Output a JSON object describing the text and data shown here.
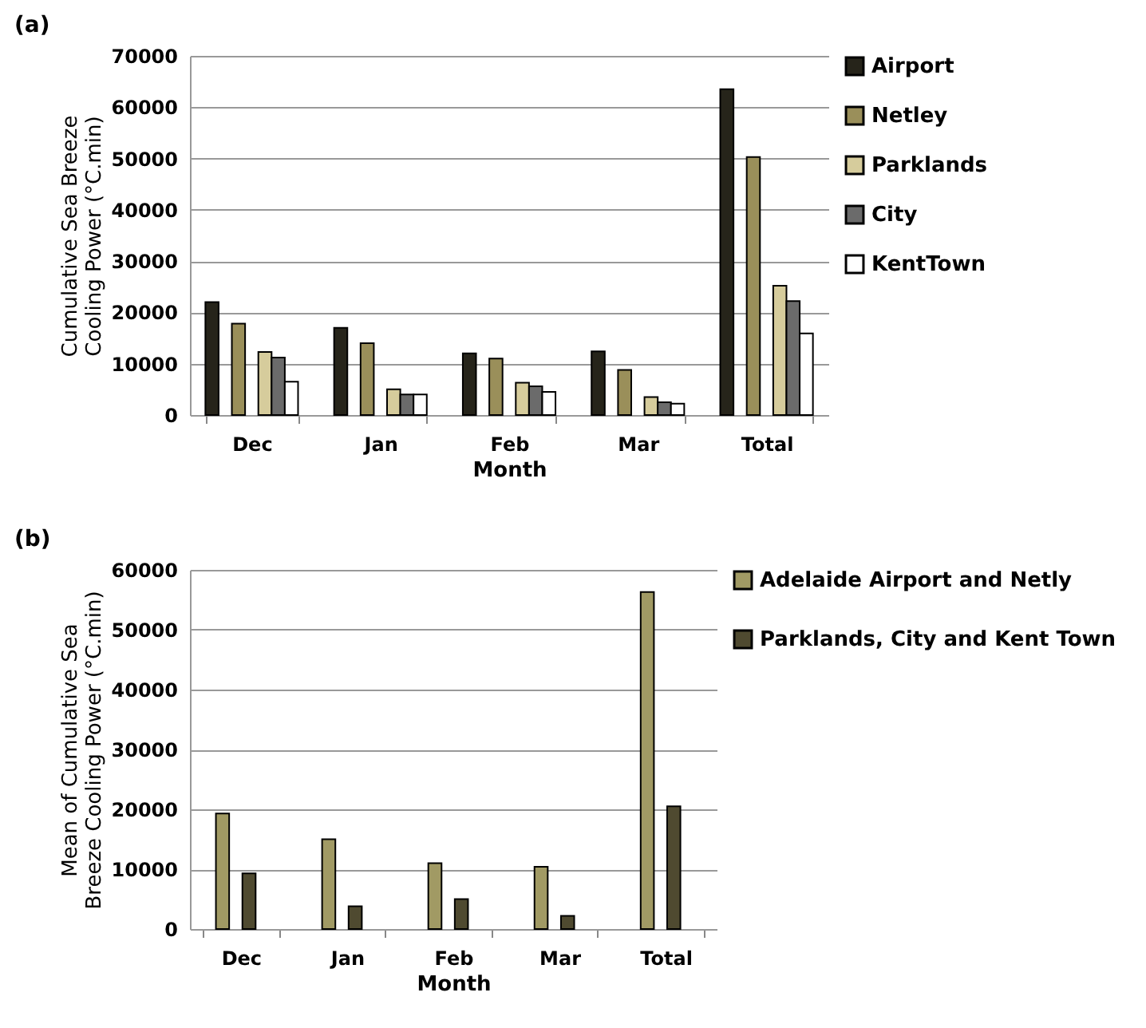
{
  "chart_data": [
    {
      "type": "bar",
      "title": "(a)",
      "xlabel": "Month",
      "ylabel": "Cumulative Sea Breeze\nCooling Power (°C.min)",
      "categories": [
        "Dec",
        "Jan",
        "Feb",
        "Mar",
        "Total"
      ],
      "ylim": [
        0,
        70000
      ],
      "yticks": [
        0,
        10000,
        20000,
        30000,
        40000,
        50000,
        60000,
        70000
      ],
      "grid": "y",
      "legend": "right",
      "series": [
        {
          "name": "Airport",
          "color": "#26241a",
          "values": [
            22000,
            17000,
            12000,
            12400,
            63500
          ]
        },
        {
          "name": "Netley",
          "color": "#9a8f5a",
          "values": [
            17800,
            14000,
            11000,
            8800,
            50300
          ]
        },
        {
          "name": "Parklands",
          "color": "#d6cc9c",
          "values": [
            12300,
            5000,
            6300,
            3500,
            25200
          ]
        },
        {
          "name": "City",
          "color": "#6b6b6b",
          "values": [
            11200,
            4000,
            5600,
            2500,
            22200
          ]
        },
        {
          "name": "KentTown",
          "color": "#ffffff",
          "values": [
            6500,
            4000,
            4500,
            2200,
            15900
          ]
        }
      ]
    },
    {
      "type": "bar",
      "title": "(b)",
      "xlabel": "Month",
      "ylabel": "Mean of Cumulative Sea\nBreeze Cooling Power (°C.min)",
      "categories": [
        "Dec",
        "Jan",
        "Feb",
        "Mar",
        "Total"
      ],
      "ylim": [
        0,
        60000
      ],
      "yticks": [
        0,
        10000,
        20000,
        30000,
        40000,
        50000,
        60000
      ],
      "grid": "y",
      "legend": "top right",
      "series": [
        {
          "name": "Adelaide Airport and Netly",
          "color": "#a19a64",
          "values": [
            19300,
            15000,
            11000,
            10400,
            56300
          ]
        },
        {
          "name": "Parklands, City and Kent Town",
          "color": "#4f4a30",
          "values": [
            9300,
            3800,
            5000,
            2200,
            20500
          ]
        }
      ]
    }
  ]
}
